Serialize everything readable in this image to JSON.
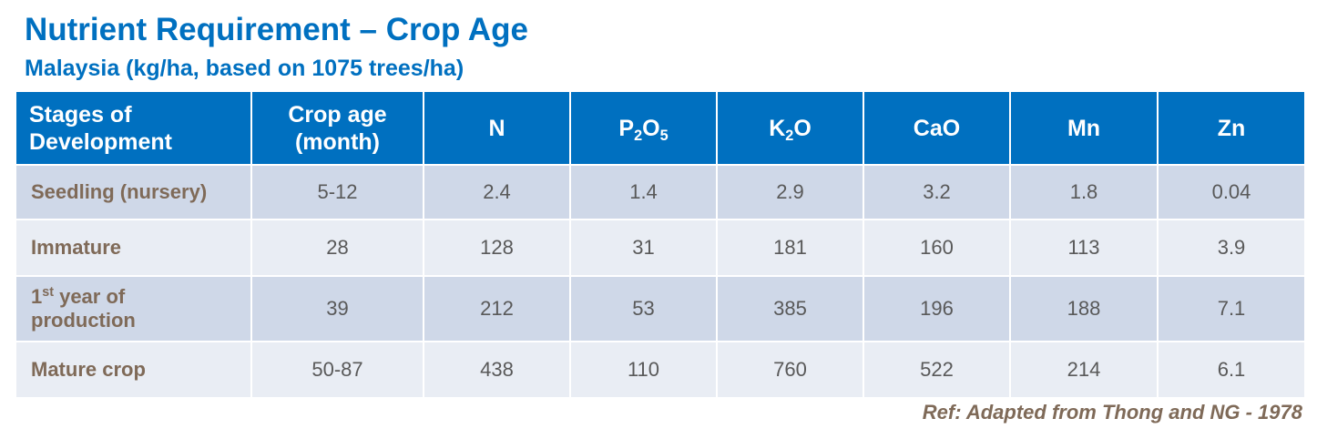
{
  "title": "Nutrient Requirement – Crop Age",
  "subtitle": "Malaysia (kg/ha, based on 1075 trees/ha)",
  "table": {
    "headers": {
      "stage_line1": "Stages of",
      "stage_line2": "Development",
      "age_line1": "Crop age",
      "age_line2": "(month)",
      "n": "N",
      "p2o5": {
        "base1": "P",
        "sub1": "2",
        "base2": "O",
        "sub2": "5"
      },
      "k2o": {
        "base1": "K",
        "sub1": "2",
        "base2": "O"
      },
      "cao": "CaO",
      "mn": "Mn",
      "zn": "Zn"
    },
    "rows": [
      {
        "stage": "Seedling (nursery)",
        "age": "5-12",
        "n": "2.4",
        "p2o5": "1.4",
        "k2o": "2.9",
        "cao": "3.2",
        "mn": "1.8",
        "zn": "0.04"
      },
      {
        "stage": "Immature",
        "age": "28",
        "n": "128",
        "p2o5": "31",
        "k2o": "181",
        "cao": "160",
        "mn": "113",
        "zn": "3.9"
      },
      {
        "stage_num": "1",
        "stage_sup": "st",
        "stage_rest": " year of",
        "stage_line2": "production",
        "age": "39",
        "n": "212",
        "p2o5": "53",
        "k2o": "385",
        "cao": "196",
        "mn": "188",
        "zn": "7.1"
      },
      {
        "stage": "Mature crop",
        "age": "50-87",
        "n": "438",
        "p2o5": "110",
        "k2o": "760",
        "cao": "522",
        "mn": "214",
        "zn": "6.1"
      }
    ]
  },
  "reference": "Ref: Adapted from Thong and NG  - 1978",
  "colors": {
    "accent": "#0070c0",
    "row_dark": "#cfd8e8",
    "row_light": "#e9edf4",
    "stage_text": "#7f6a58"
  }
}
